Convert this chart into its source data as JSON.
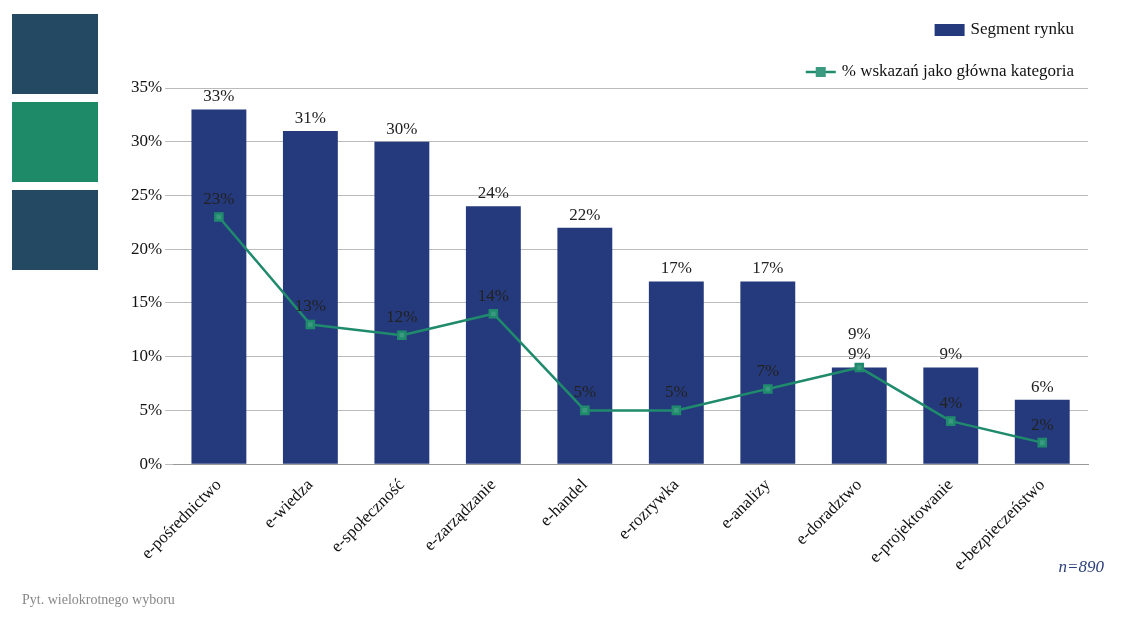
{
  "chart_data": {
    "type": "bar",
    "categories": [
      "e-pośrednictwo",
      "e-wiedza",
      "e-społeczność",
      "e-zarządzanie",
      "e-handel",
      "e-rozrywka",
      "e-analizy",
      "e-doradztwo",
      "e-projektowanie",
      "e-bezpieczeństwo"
    ],
    "series": [
      {
        "name": "Segment rynku",
        "color": "#253a7c",
        "values": [
          33,
          31,
          30,
          24,
          22,
          17,
          17,
          9,
          9,
          6
        ],
        "value_labels": [
          "33%",
          "31%",
          "30%",
          "24%",
          "22%",
          "17%",
          "17%",
          "9%",
          "9%",
          "6%"
        ]
      },
      {
        "name": "% wskazań jako główna kategoria",
        "type": "line",
        "color": "#1f8a6c",
        "marker": "square",
        "values": [
          23,
          13,
          12,
          14,
          5,
          5,
          7,
          9,
          4,
          2
        ],
        "value_labels": [
          "23%",
          "13%",
          "12%",
          "14%",
          "5%",
          "5%",
          "7%",
          "9%",
          "4%",
          "2%"
        ]
      }
    ],
    "ylim": [
      0,
      35
    ],
    "yticks": [
      {
        "value": 0,
        "label": "0%"
      },
      {
        "value": 5,
        "label": "5%"
      },
      {
        "value": 10,
        "label": "10%"
      },
      {
        "value": 15,
        "label": "15%"
      },
      {
        "value": 20,
        "label": "20%"
      },
      {
        "value": 25,
        "label": "25%"
      },
      {
        "value": 30,
        "label": "30%"
      },
      {
        "value": 35,
        "label": "35%"
      }
    ],
    "grid": "y",
    "legend": "top right",
    "annotations": [
      "n=890",
      "Pyt. wielokrotnego wyboru"
    ]
  }
}
